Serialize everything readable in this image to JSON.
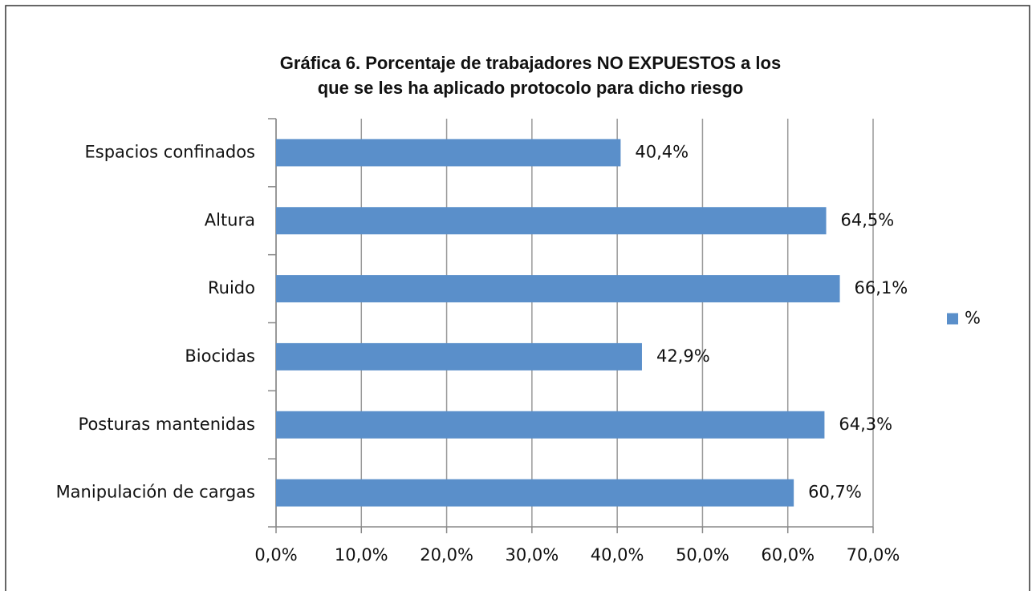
{
  "chart_data": {
    "type": "barh",
    "title": [
      "Gráfica 6. Porcentaje de trabajadores NO EXPUESTOS a los",
      "que se les ha aplicado protocolo para dicho riesgo"
    ],
    "categories": [
      "Espacios confinados",
      "Altura",
      "Ruido",
      "Biocidas",
      "Posturas mantenidas",
      "Manipulación de cargas"
    ],
    "series": [
      {
        "name": "%",
        "color": "#5a8fca",
        "values": [
          40.4,
          64.5,
          66.1,
          42.9,
          64.3,
          60.7
        ],
        "value_labels": [
          "40,4%",
          "64,5%",
          "66,1%",
          "42,9%",
          "64,3%",
          "60,7%"
        ]
      }
    ],
    "xlim": [
      0,
      70
    ],
    "xticks": [
      {
        "value": 0,
        "label": "0,0%"
      },
      {
        "value": 10,
        "label": "10,0%"
      },
      {
        "value": 20,
        "label": "20,0%"
      },
      {
        "value": 30,
        "label": "30,0%"
      },
      {
        "value": 40,
        "label": "40,0%"
      },
      {
        "value": 50,
        "label": "50,0%"
      },
      {
        "value": 60,
        "label": "60,0%"
      },
      {
        "value": 70,
        "label": "70,0%"
      }
    ],
    "grid": true,
    "legend": "right"
  }
}
